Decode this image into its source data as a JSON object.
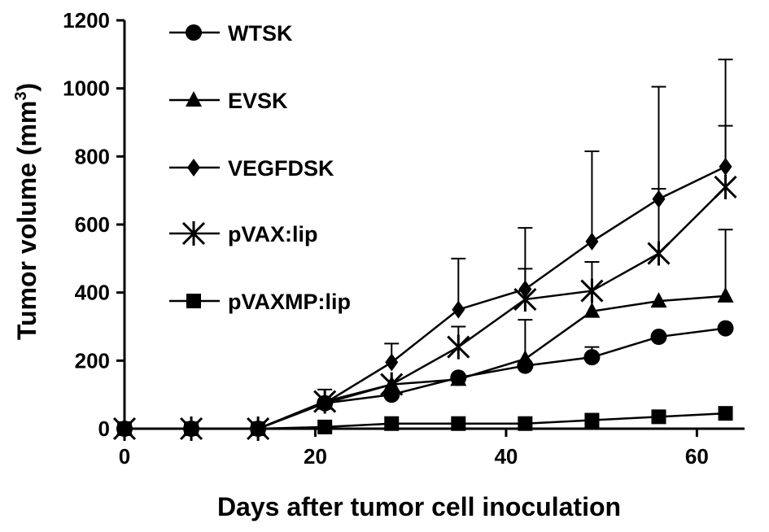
{
  "chart_data": {
    "type": "line",
    "title": "",
    "xlabel": "Days after tumor cell inoculation",
    "ylabel": "Tumor volume (mm",
    "ylabel_sup": "3",
    "ylabel_close": ")",
    "xlim": [
      0,
      65
    ],
    "ylim": [
      0,
      1200
    ],
    "xticks": [
      0,
      20,
      40,
      60
    ],
    "yticks": [
      0,
      200,
      400,
      600,
      800,
      1000,
      1200
    ],
    "grid": false,
    "legend": "top-left",
    "x": [
      0,
      7,
      14,
      21,
      28,
      35,
      42,
      49,
      56,
      63
    ],
    "series": [
      {
        "name": "WTSK",
        "marker": "circle",
        "values": [
          0,
          0,
          0,
          75,
          100,
          150,
          185,
          210,
          270,
          295
        ],
        "errors": [
          0,
          0,
          0,
          0,
          0,
          0,
          0,
          30,
          0,
          0
        ]
      },
      {
        "name": "EVSK",
        "marker": "triangle",
        "values": [
          0,
          0,
          0,
          75,
          130,
          145,
          205,
          345,
          375,
          390
        ],
        "errors": [
          0,
          0,
          0,
          0,
          0,
          0,
          115,
          145,
          0,
          195
        ]
      },
      {
        "name": "VEGFDSK",
        "marker": "diamond",
        "values": [
          0,
          0,
          0,
          75,
          195,
          350,
          410,
          550,
          675,
          770
        ],
        "errors": [
          0,
          0,
          0,
          0,
          55,
          150,
          180,
          265,
          330,
          315
        ]
      },
      {
        "name": "pVAX:lip",
        "marker": "asterisk",
        "values": [
          0,
          0,
          0,
          80,
          130,
          240,
          380,
          405,
          515,
          710
        ],
        "errors": [
          0,
          0,
          0,
          35,
          0,
          60,
          90,
          0,
          190,
          180
        ]
      },
      {
        "name": "pVAXMP:lip",
        "marker": "square",
        "values": [
          0,
          0,
          0,
          5,
          15,
          15,
          15,
          25,
          35,
          45
        ],
        "errors": [
          0,
          0,
          0,
          0,
          0,
          0,
          0,
          0,
          0,
          0
        ]
      }
    ]
  }
}
